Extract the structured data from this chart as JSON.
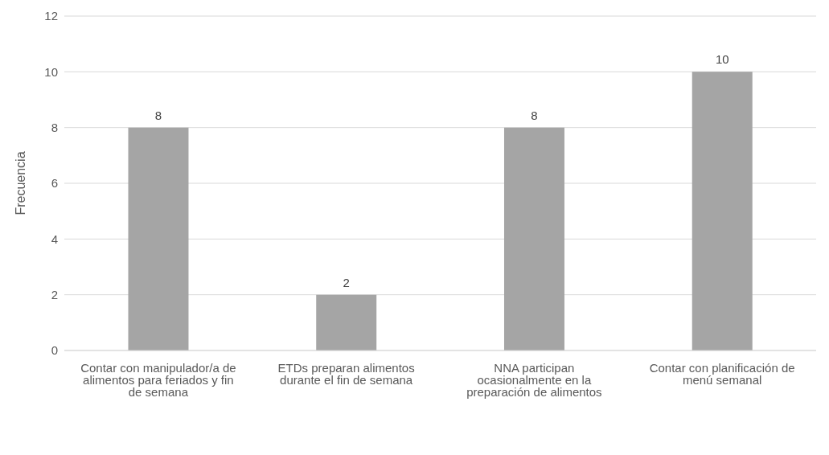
{
  "chart_data": {
    "type": "bar",
    "ylabel": "Frecuencia",
    "categories": [
      "Contar con manipulador/a de alimentos para feriados y fin de semana",
      "ETDs preparan alimentos durante el fin de semana",
      "NNA participan ocasionalmente en la preparación de alimentos",
      "Contar con planificación de menú semanal"
    ],
    "values": [
      8,
      2,
      8,
      10
    ],
    "color": "#a5a5a5",
    "ylim": [
      0,
      12
    ],
    "yticks": [
      0,
      2,
      4,
      6,
      8,
      10,
      12
    ],
    "grid": "y",
    "data_labels": true,
    "legend": false
  }
}
